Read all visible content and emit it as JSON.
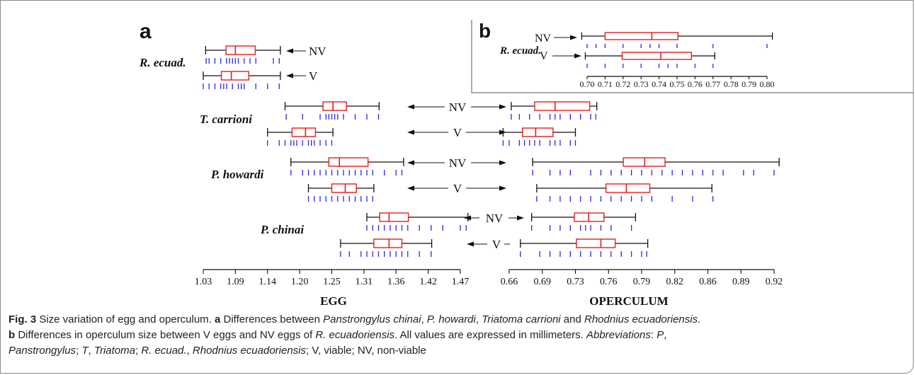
{
  "chart_data": [
    {
      "panel": "a",
      "type": "boxplot",
      "panel_label": "a",
      "species_labels": [
        "R. ecuad.",
        "T. carrioni",
        "P. howardi",
        "P. chinai"
      ],
      "arrow_labels": [
        "NV",
        "V"
      ],
      "axes": [
        {
          "name": "egg",
          "xlabel": "EGG",
          "ticks": [
            "1.03",
            "1.09",
            "1.14",
            "1.20",
            "1.25",
            "1.31",
            "1.36",
            "1.42",
            "1.47"
          ],
          "xlim": [
            1.03,
            1.47
          ],
          "series": [
            {
              "species": "R. ecuad.",
              "group": "NV",
              "whisker_low": 1.034,
              "q1": 1.069,
              "median": 1.085,
              "q3": 1.119,
              "whisker_high": 1.162,
              "points": [
                1.035,
                1.04,
                1.05,
                1.06,
                1.07,
                1.075,
                1.08,
                1.085,
                1.09,
                1.1,
                1.11,
                1.12,
                1.15,
                1.16
              ]
            },
            {
              "species": "R. ecuad.",
              "group": "V",
              "whisker_low": 1.03,
              "q1": 1.061,
              "median": 1.078,
              "q3": 1.108,
              "whisker_high": 1.162,
              "points": [
                1.03,
                1.04,
                1.05,
                1.06,
                1.065,
                1.07,
                1.08,
                1.09,
                1.095,
                1.1,
                1.12,
                1.14,
                1.16
              ]
            },
            {
              "species": "T. carrioni",
              "group": "NV",
              "whisker_low": 1.17,
              "q1": 1.235,
              "median": 1.252,
              "q3": 1.275,
              "whisker_high": 1.331,
              "points": [
                1.172,
                1.2,
                1.23,
                1.24,
                1.245,
                1.25,
                1.255,
                1.26,
                1.27,
                1.29,
                1.31,
                1.33
              ]
            },
            {
              "species": "T. carrioni",
              "group": "V",
              "whisker_low": 1.14,
              "q1": 1.182,
              "median": 1.205,
              "q3": 1.222,
              "whisker_high": 1.252,
              "points": [
                1.14,
                1.16,
                1.17,
                1.18,
                1.185,
                1.19,
                1.2,
                1.21,
                1.215,
                1.22,
                1.23,
                1.24,
                1.25
              ]
            },
            {
              "species": "P. howardi",
              "group": "NV",
              "whisker_low": 1.18,
              "q1": 1.245,
              "median": 1.263,
              "q3": 1.312,
              "whisker_high": 1.373,
              "points": [
                1.18,
                1.2,
                1.21,
                1.22,
                1.23,
                1.24,
                1.25,
                1.26,
                1.27,
                1.28,
                1.29,
                1.3,
                1.31,
                1.32,
                1.34,
                1.36,
                1.37
              ]
            },
            {
              "species": "P. howardi",
              "group": "V",
              "whisker_low": 1.21,
              "q1": 1.25,
              "median": 1.273,
              "q3": 1.292,
              "whisker_high": 1.322,
              "points": [
                1.21,
                1.22,
                1.23,
                1.24,
                1.25,
                1.26,
                1.27,
                1.28,
                1.29,
                1.3,
                1.31,
                1.32
              ]
            },
            {
              "species": "P. chinai",
              "group": "NV",
              "whisker_low": 1.31,
              "q1": 1.332,
              "median": 1.348,
              "q3": 1.381,
              "whisker_high": 1.483,
              "points": [
                1.31,
                1.32,
                1.33,
                1.34,
                1.35,
                1.36,
                1.37,
                1.38,
                1.4,
                1.42,
                1.44,
                1.47,
                1.48
              ]
            },
            {
              "species": "P. chinai",
              "group": "V",
              "whisker_low": 1.265,
              "q1": 1.322,
              "median": 1.348,
              "q3": 1.37,
              "whisker_high": 1.421,
              "points": [
                1.265,
                1.28,
                1.3,
                1.31,
                1.32,
                1.33,
                1.34,
                1.35,
                1.36,
                1.37,
                1.38,
                1.4,
                1.42
              ]
            }
          ]
        },
        {
          "name": "operculum",
          "xlabel": "OPERCULUM",
          "ticks": [
            "0.66",
            "0.69",
            "0.73",
            "0.76",
            "0.79",
            "0.82",
            "0.86",
            "0.89",
            "0.92"
          ],
          "xlim": [
            0.66,
            0.92
          ],
          "series": [
            {
              "species": "T. carrioni",
              "group": "NV",
              "whisker_low": 0.662,
              "q1": 0.685,
              "median": 0.705,
              "q3": 0.739,
              "whisker_high": 0.746,
              "points": [
                0.662,
                0.67,
                0.68,
                0.69,
                0.7,
                0.705,
                0.71,
                0.72,
                0.73,
                0.74,
                0.745
              ]
            },
            {
              "species": "T. carrioni",
              "group": "V",
              "whisker_low": 0.654,
              "q1": 0.673,
              "median": 0.686,
              "q3": 0.703,
              "whisker_high": 0.725,
              "points": [
                0.654,
                0.66,
                0.67,
                0.675,
                0.68,
                0.685,
                0.69,
                0.7,
                0.705,
                0.71,
                0.72,
                0.725
              ]
            },
            {
              "species": "P. howardi",
              "group": "NV",
              "whisker_low": 0.683,
              "q1": 0.772,
              "median": 0.793,
              "q3": 0.813,
              "whisker_high": 0.925,
              "points": [
                0.683,
                0.7,
                0.71,
                0.72,
                0.74,
                0.75,
                0.76,
                0.77,
                0.78,
                0.79,
                0.8,
                0.81,
                0.82,
                0.83,
                0.84,
                0.85,
                0.86,
                0.87,
                0.89,
                0.9,
                0.92
              ]
            },
            {
              "species": "P. howardi",
              "group": "V",
              "whisker_low": 0.687,
              "q1": 0.755,
              "median": 0.775,
              "q3": 0.798,
              "whisker_high": 0.859,
              "points": [
                0.687,
                0.7,
                0.71,
                0.72,
                0.73,
                0.74,
                0.75,
                0.76,
                0.77,
                0.78,
                0.79,
                0.8,
                0.82,
                0.84,
                0.86
              ]
            },
            {
              "species": "P. chinai",
              "group": "NV",
              "whisker_low": 0.682,
              "q1": 0.724,
              "median": 0.738,
              "q3": 0.753,
              "whisker_high": 0.784,
              "points": [
                0.682,
                0.7,
                0.71,
                0.72,
                0.73,
                0.735,
                0.74,
                0.75,
                0.76,
                0.78
              ]
            },
            {
              "species": "P. chinai",
              "group": "V",
              "whisker_low": 0.671,
              "q1": 0.726,
              "median": 0.75,
              "q3": 0.764,
              "whisker_high": 0.796,
              "points": [
                0.671,
                0.69,
                0.7,
                0.71,
                0.72,
                0.73,
                0.74,
                0.75,
                0.76,
                0.77,
                0.78,
                0.79,
                0.795
              ]
            }
          ]
        }
      ]
    },
    {
      "panel": "b",
      "type": "boxplot",
      "panel_label": "b",
      "species_label": "R. ecuad.",
      "ticks": [
        "0.70",
        "0.71",
        "0.72",
        "0.73",
        "0.74",
        "0.75",
        "0.76",
        "0.77",
        "0.78",
        "0.79",
        "0.80"
      ],
      "xlim": [
        0.7,
        0.8
      ],
      "series": [
        {
          "group": "NV",
          "whisker_low": 0.697,
          "q1": 0.71,
          "median": 0.736,
          "q3": 0.7505,
          "whisker_high": 0.803,
          "points": [
            0.7,
            0.705,
            0.71,
            0.72,
            0.73,
            0.735,
            0.74,
            0.75,
            0.77,
            0.8
          ]
        },
        {
          "group": "V",
          "whisker_low": 0.699,
          "q1": 0.7195,
          "median": 0.741,
          "q3": 0.758,
          "whisker_high": 0.771,
          "points": [
            0.7,
            0.71,
            0.72,
            0.73,
            0.74,
            0.745,
            0.75,
            0.76,
            0.77
          ]
        }
      ]
    }
  ],
  "caption": {
    "fig_label": "Fig. 3",
    "title": " Size variation of egg and operculum. ",
    "a_label": "a",
    "a_text_1": " Differences between ",
    "a_sp1": "Panstrongylus chinai",
    "a_sep1": ", ",
    "a_sp2": "P. howardi",
    "a_sep2": ", ",
    "a_sp3": "Triatoma carrioni",
    "a_and": " and ",
    "a_sp4": "Rhodnius ecuadoriensis",
    "a_end": ".",
    "b_label": "b",
    "b_text_1": " Differences in operculum size between V eggs and NV eggs of ",
    "b_sp": "R. ecuadoriensis",
    "b_text_2": ". All values are expressed in millimeters. ",
    "abbr_label": "Abbreviations",
    "abbr_1": ": ",
    "abbr_p": "P",
    "abbr_2": ", ",
    "abbr_p_full": "Panstrongylus",
    "abbr_3": "; ",
    "abbr_t": "T",
    "abbr_4": ", ",
    "abbr_t_full": "Triatoma",
    "abbr_5": "; ",
    "abbr_r": "R. ecuad.",
    "abbr_6": ", ",
    "abbr_r_full": "Rhodnius ecuadoriensis",
    "abbr_7": "; V, viable; NV, non-viable"
  },
  "colors": {
    "box": "#e02020",
    "points": "#2a2ad8",
    "line": "#111111"
  }
}
